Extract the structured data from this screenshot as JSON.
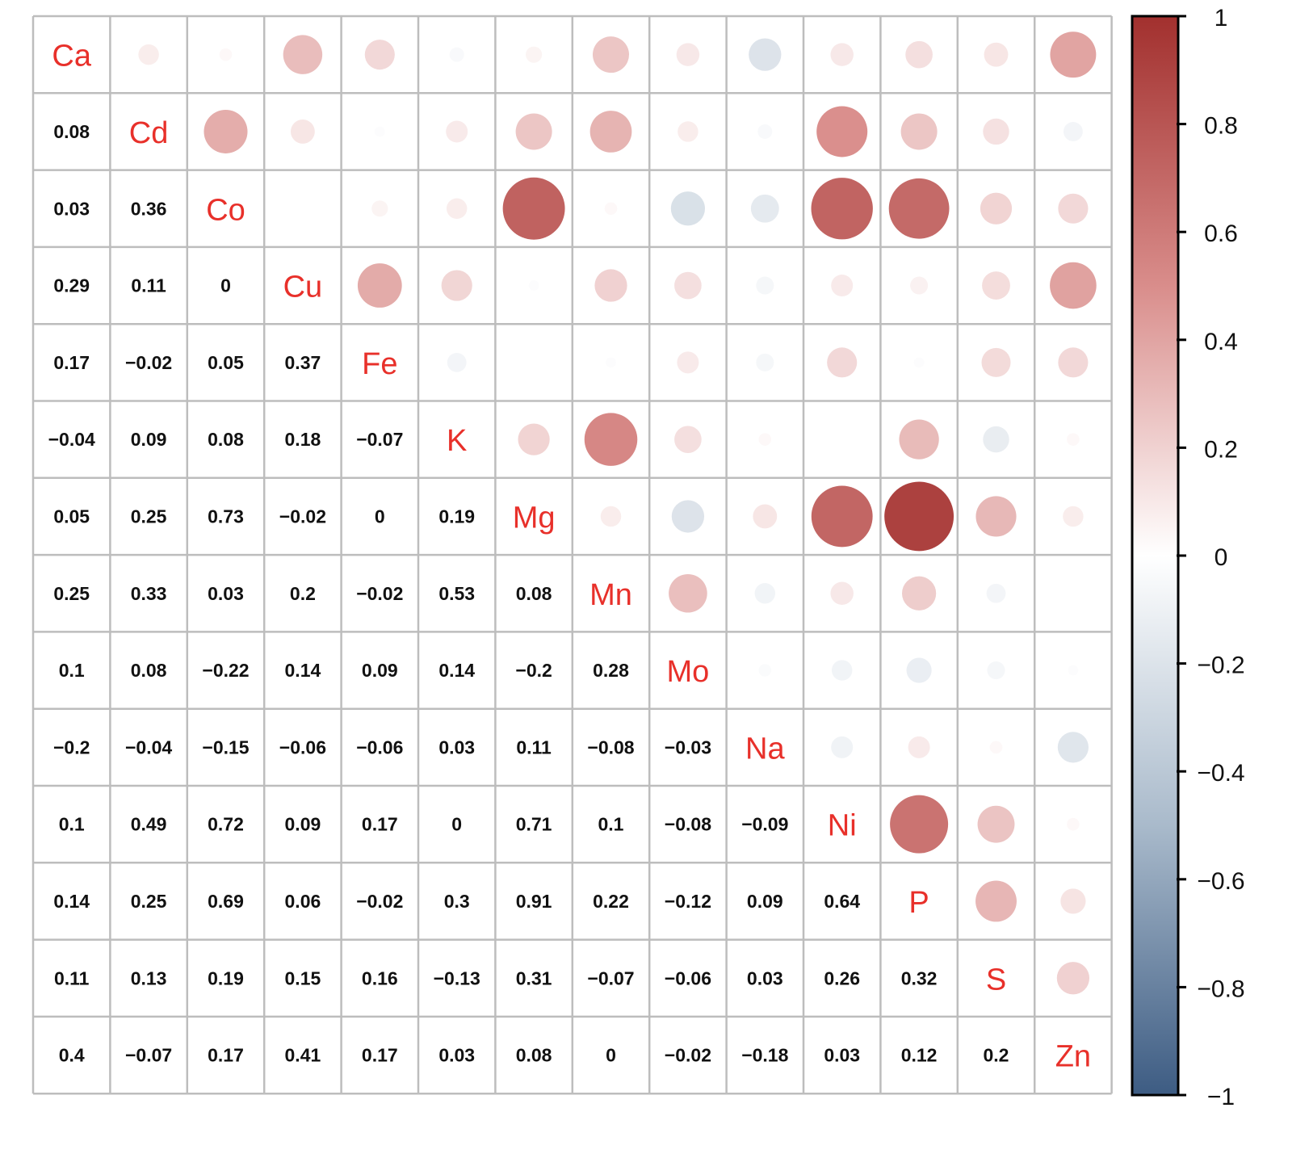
{
  "chart_data": {
    "type": "heatmap",
    "title": "",
    "variables": [
      "Ca",
      "Cd",
      "Co",
      "Cu",
      "Fe",
      "K",
      "Mg",
      "Mn",
      "Mo",
      "Na",
      "Ni",
      "P",
      "S",
      "Zn"
    ],
    "matrix": [
      [
        1,
        0.08,
        0.03,
        0.29,
        0.17,
        -0.04,
        0.05,
        0.25,
        0.1,
        -0.2,
        0.1,
        0.14,
        0.11,
        0.4
      ],
      [
        0.08,
        1,
        0.36,
        0.11,
        -0.02,
        0.09,
        0.25,
        0.33,
        0.08,
        -0.04,
        0.49,
        0.25,
        0.13,
        -0.07
      ],
      [
        0.03,
        0.36,
        1,
        0,
        0.05,
        0.08,
        0.73,
        0.03,
        -0.22,
        -0.15,
        0.72,
        0.69,
        0.19,
        0.17
      ],
      [
        0.29,
        0.11,
        0,
        1,
        0.37,
        0.18,
        -0.02,
        0.2,
        0.14,
        -0.06,
        0.09,
        0.06,
        0.15,
        0.41
      ],
      [
        0.17,
        -0.02,
        0.05,
        0.37,
        1,
        -0.07,
        0,
        -0.02,
        0.09,
        -0.06,
        0.17,
        -0.02,
        0.16,
        0.17
      ],
      [
        -0.04,
        0.09,
        0.08,
        0.18,
        -0.07,
        1,
        0.19,
        0.53,
        0.14,
        0.03,
        0,
        0.3,
        -0.13,
        0.03
      ],
      [
        0.05,
        0.25,
        0.73,
        -0.02,
        0,
        0.19,
        1,
        0.08,
        -0.2,
        0.11,
        0.71,
        0.91,
        0.31,
        0.08
      ],
      [
        0.25,
        0.33,
        0.03,
        0.2,
        -0.02,
        0.53,
        0.08,
        1,
        0.28,
        -0.08,
        0.1,
        0.22,
        -0.07,
        0
      ],
      [
        0.1,
        0.08,
        -0.22,
        0.14,
        0.09,
        0.14,
        -0.2,
        0.28,
        1,
        -0.03,
        -0.08,
        -0.12,
        -0.06,
        -0.02
      ],
      [
        -0.2,
        -0.04,
        -0.15,
        -0.06,
        -0.06,
        0.03,
        0.11,
        -0.08,
        -0.03,
        1,
        -0.09,
        0.09,
        0.03,
        -0.18
      ],
      [
        0.1,
        0.49,
        0.72,
        0.09,
        0.17,
        0,
        0.71,
        0.1,
        -0.08,
        -0.09,
        1,
        0.64,
        0.26,
        0.03
      ],
      [
        0.14,
        0.25,
        0.69,
        0.06,
        -0.02,
        0.3,
        0.91,
        0.22,
        -0.12,
        0.09,
        0.64,
        1,
        0.32,
        0.12
      ],
      [
        0.11,
        0.13,
        0.19,
        0.15,
        0.16,
        -0.13,
        0.31,
        -0.07,
        -0.06,
        0.03,
        0.26,
        0.32,
        1,
        0.2
      ],
      [
        0.4,
        -0.07,
        0.17,
        0.41,
        0.17,
        0.03,
        0.08,
        0,
        -0.02,
        -0.18,
        0.03,
        0.12,
        0.2,
        1
      ]
    ],
    "lower_triangle": "numbers",
    "upper_triangle": "circles",
    "diagonal": "variable-names",
    "color_scale": {
      "range": [
        -1,
        1
      ],
      "ticks": [
        1,
        0.8,
        0.6,
        0.4,
        0.2,
        0,
        -0.2,
        -0.4,
        -0.6,
        -0.8,
        -1
      ],
      "tick_labels": [
        "1",
        "0.8",
        "0.6",
        "0.4",
        "0.2",
        "0",
        "−0.2",
        "−0.4",
        "−0.6",
        "−0.8",
        "−1"
      ],
      "negative_color": "#3d5c83",
      "zero_color": "#ffffff",
      "positive_color": "#a2302e"
    },
    "legend": "right",
    "grid": true,
    "label_color": "#e8302a"
  }
}
